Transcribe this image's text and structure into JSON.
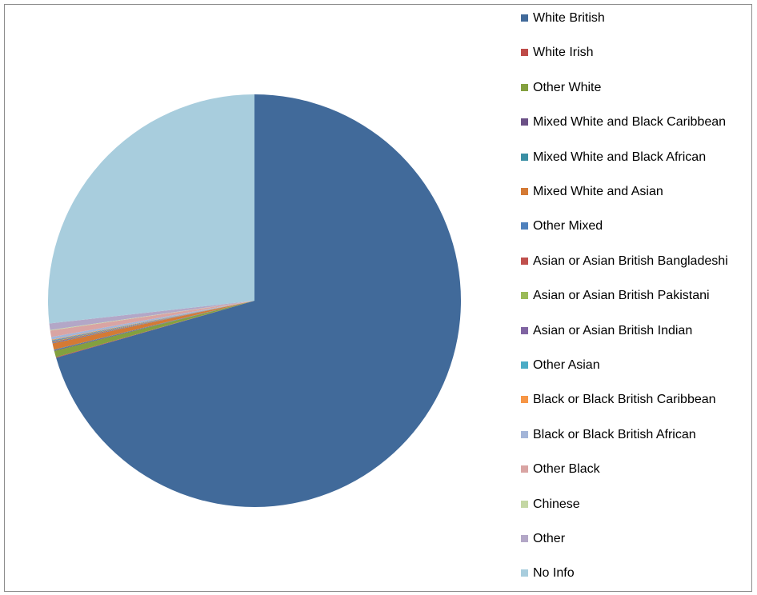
{
  "chart_data": {
    "type": "pie",
    "title": "",
    "legend_position": "right",
    "start_angle_deg": 0,
    "direction": "clockwise",
    "slices": [
      {
        "label": "White British",
        "value": 70.5,
        "color": "#416a9a"
      },
      {
        "label": "White Irish",
        "value": 0.05,
        "color": "#be4b48"
      },
      {
        "label": "Other White",
        "value": 0.5,
        "color": "#83a03f"
      },
      {
        "label": "Mixed White and Black Caribbean",
        "value": 0.05,
        "color": "#6b5086"
      },
      {
        "label": "Mixed White and Black African",
        "value": 0.05,
        "color": "#3a8fa4"
      },
      {
        "label": "Mixed White and Asian",
        "value": 0.5,
        "color": "#d47a35"
      },
      {
        "label": "Other Mixed",
        "value": 0.05,
        "color": "#4f81bd"
      },
      {
        "label": "Asian or Asian British Bangladeshi",
        "value": 0.05,
        "color": "#c0504d"
      },
      {
        "label": "Asian or Asian British Pakistani",
        "value": 0.05,
        "color": "#9bbb59"
      },
      {
        "label": "Asian or Asian British Indian",
        "value": 0.05,
        "color": "#8064a2"
      },
      {
        "label": "Other Asian",
        "value": 0.05,
        "color": "#4bacc6"
      },
      {
        "label": "Black or Black British Caribbean",
        "value": 0.05,
        "color": "#f79646"
      },
      {
        "label": "Black or Black British African",
        "value": 0.2,
        "color": "#a3b5d8"
      },
      {
        "label": "Other Black",
        "value": 0.5,
        "color": "#d9a4a3"
      },
      {
        "label": "Chinese",
        "value": 0.05,
        "color": "#c4d7a4"
      },
      {
        "label": "Other",
        "value": 0.5,
        "color": "#b3a7c7"
      },
      {
        "label": "No Info",
        "value": 26.75,
        "color": "#a8cddd"
      }
    ]
  }
}
